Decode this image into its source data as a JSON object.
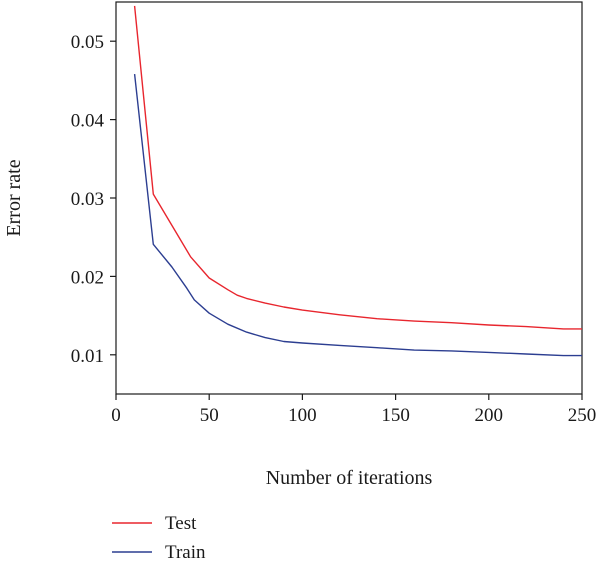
{
  "chart_data": {
    "type": "line",
    "title": "",
    "xlabel": "Number of iterations",
    "ylabel": "Error rate",
    "xlim": [
      0,
      250
    ],
    "ylim": [
      0.005,
      0.055
    ],
    "xticks": [
      0,
      50,
      100,
      150,
      200,
      250
    ],
    "xtick_labels": [
      "0",
      "50",
      "100",
      "150",
      "200",
      "250"
    ],
    "yticks": [
      0.01,
      0.02,
      0.03,
      0.04,
      0.05
    ],
    "ytick_labels": [
      "0.01",
      "0.02",
      "0.03",
      "0.04",
      "0.05"
    ],
    "grid": false,
    "legend_position": "bottom-left",
    "series": [
      {
        "name": "Test",
        "color": "#e8262e",
        "x": [
          10,
          20,
          30,
          40,
          50,
          60,
          65,
          70,
          80,
          90,
          100,
          120,
          140,
          160,
          180,
          200,
          220,
          240,
          250
        ],
        "y": [
          0.0545,
          0.0305,
          0.0265,
          0.0225,
          0.0198,
          0.0183,
          0.0176,
          0.0172,
          0.0166,
          0.0161,
          0.0157,
          0.0151,
          0.0146,
          0.0143,
          0.0141,
          0.0138,
          0.0136,
          0.0133,
          0.0133
        ]
      },
      {
        "name": "Train",
        "color": "#2c3e91",
        "x": [
          10,
          20,
          30,
          38,
          42,
          50,
          60,
          70,
          80,
          90,
          100,
          120,
          140,
          160,
          180,
          200,
          220,
          240,
          250
        ],
        "y": [
          0.0458,
          0.0241,
          0.0212,
          0.0185,
          0.017,
          0.0153,
          0.0139,
          0.0129,
          0.0122,
          0.0117,
          0.0115,
          0.0112,
          0.0109,
          0.0106,
          0.0105,
          0.0103,
          0.0101,
          0.0099,
          0.0099
        ]
      }
    ]
  }
}
